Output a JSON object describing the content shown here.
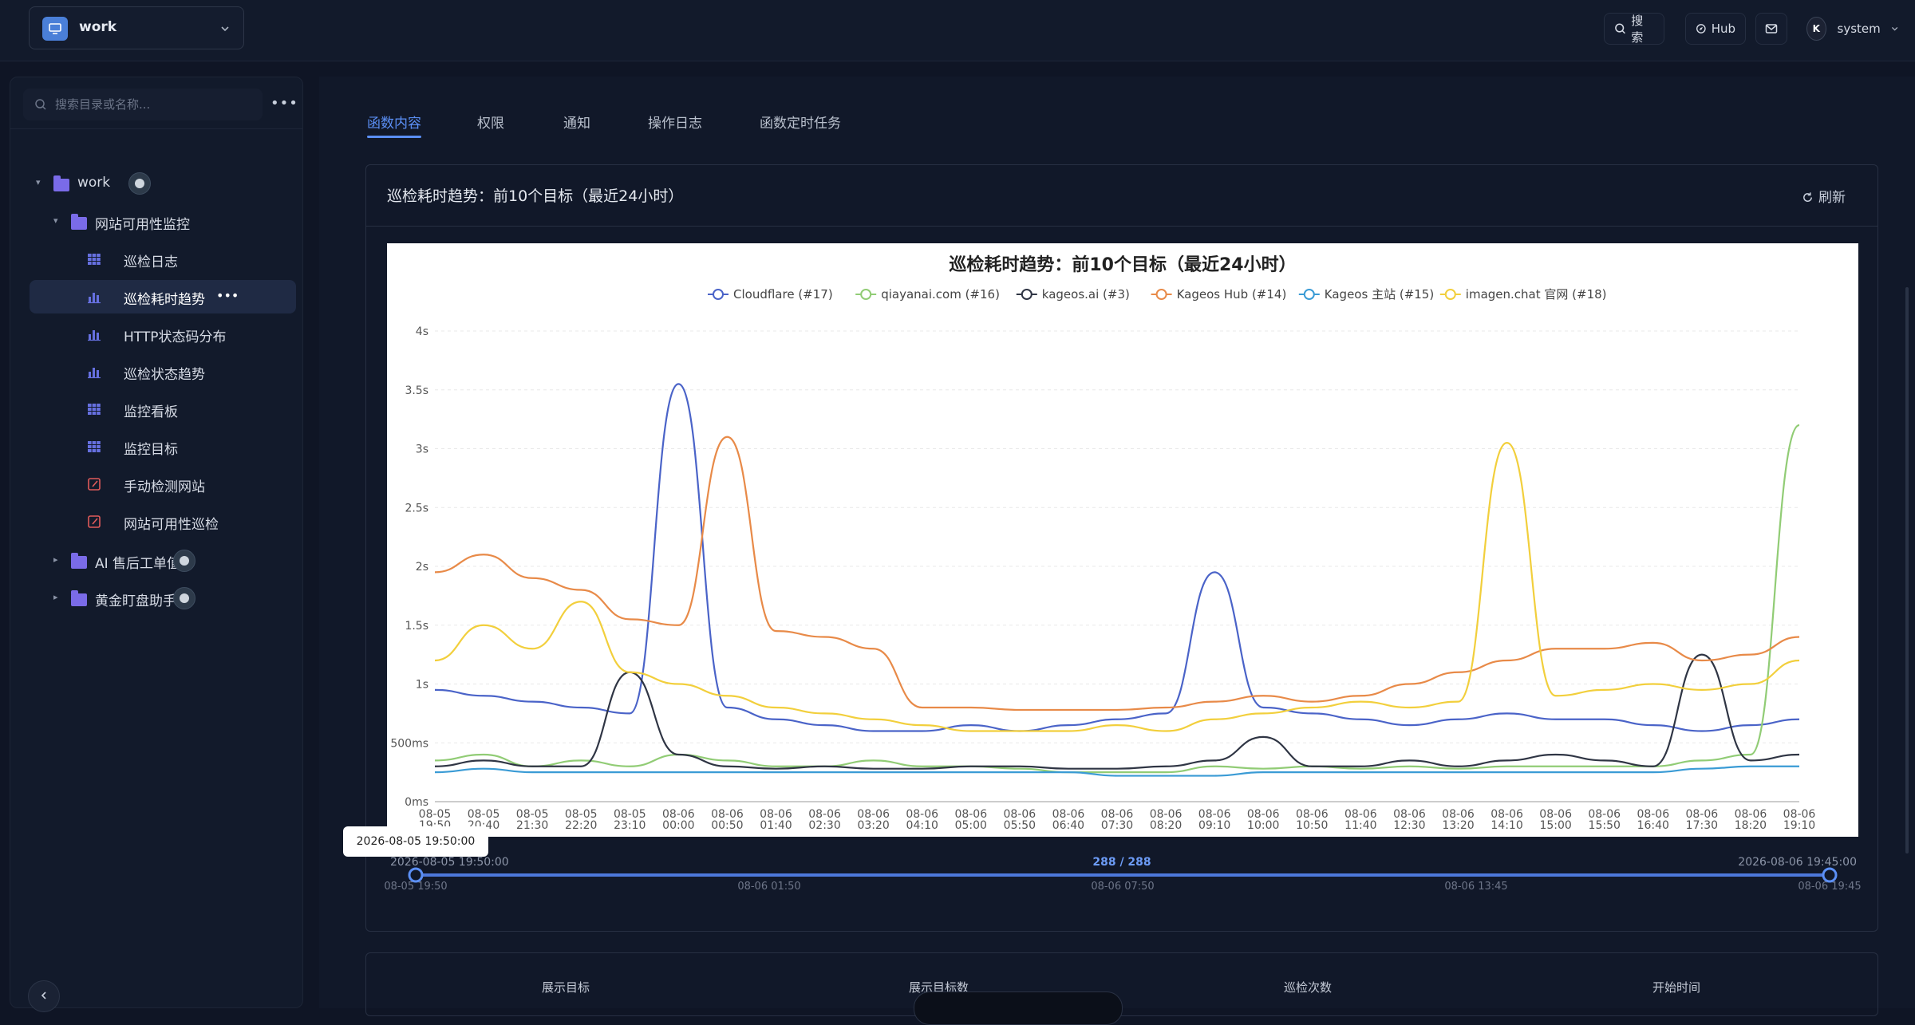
{
  "workspace": {
    "name": "work"
  },
  "topbar": {
    "search_label": "搜索",
    "hub_label": "Hub",
    "user_name": "system",
    "user_initial": "K"
  },
  "sidebar": {
    "search_placeholder": "搜索目录或名称...",
    "tree": [
      {
        "label": "work",
        "type": "folder",
        "level": 0,
        "expanded": true,
        "has_badge": true
      },
      {
        "label": "网站可用性监控",
        "type": "folder",
        "level": 1,
        "expanded": true,
        "has_badge": false
      },
      {
        "label": "巡检日志",
        "type": "table",
        "level": 2,
        "has_badge": false
      },
      {
        "label": "巡检耗时趋势",
        "type": "chart",
        "level": 2,
        "active": true,
        "has_badge": false
      },
      {
        "label": "HTTP状态码分布",
        "type": "chart",
        "level": 2,
        "has_badge": false
      },
      {
        "label": "巡检状态趋势",
        "type": "chart",
        "level": 2,
        "has_badge": false
      },
      {
        "label": "监控看板",
        "type": "table",
        "level": 2,
        "has_badge": false
      },
      {
        "label": "监控目标",
        "type": "table",
        "level": 2,
        "has_badge": false
      },
      {
        "label": "手动检测网站",
        "type": "function",
        "level": 2,
        "has_badge": false
      },
      {
        "label": "网站可用性巡检",
        "type": "function",
        "level": 2,
        "has_badge": false
      },
      {
        "label": "AI 售后工单值守",
        "type": "folder",
        "level": 1,
        "expanded": false,
        "has_badge": true
      },
      {
        "label": "黄金盯盘助手",
        "type": "folder",
        "level": 1,
        "expanded": false,
        "has_badge": true
      }
    ]
  },
  "tabs": [
    {
      "label": "函数内容",
      "active": true
    },
    {
      "label": "权限",
      "active": false
    },
    {
      "label": "通知",
      "active": false
    },
    {
      "label": "操作日志",
      "active": false
    },
    {
      "label": "函数定时任务",
      "active": false
    }
  ],
  "card": {
    "title": "巡检耗时趋势：前10个目标（最近24小时）",
    "refresh_label": "刷新"
  },
  "slider": {
    "tooltip": "2026-08-05 19:50:00",
    "start_label": "2026-08-05 19:50:00",
    "count_label": "288 / 288",
    "end_label": "2026-08-06 19:45:00",
    "ticks": [
      "08-05 19:50",
      "08-06 01:50",
      "08-06 07:50",
      "08-06 13:45",
      "08-06 19:45"
    ]
  },
  "summary_columns": [
    "展示目标",
    "展示目标数",
    "巡检次数",
    "开始时间"
  ],
  "colors": {
    "accent": "#5b8ff5",
    "bg": "#0f1525",
    "panel": "#121a2b"
  },
  "chart_data": {
    "type": "line",
    "title": "巡检耗时趋势：前10个目标（最近24小时）",
    "ylim": [
      0,
      4
    ],
    "y_ticks": [
      "0ms",
      "500ms",
      "1s",
      "1.5s",
      "2s",
      "2.5s",
      "3s",
      "3.5s",
      "4s"
    ],
    "x": [
      "08-05 19:50",
      "08-05 20:40",
      "08-05 21:30",
      "08-05 22:20",
      "08-05 23:10",
      "08-06 00:00",
      "08-06 00:50",
      "08-06 01:40",
      "08-06 02:30",
      "08-06 03:20",
      "08-06 04:10",
      "08-06 05:00",
      "08-06 05:50",
      "08-06 06:40",
      "08-06 07:30",
      "08-06 08:20",
      "08-06 09:10",
      "08-06 10:00",
      "08-06 10:50",
      "08-06 11:40",
      "08-06 12:30",
      "08-06 13:20",
      "08-06 14:10",
      "08-06 15:00",
      "08-06 15:50",
      "08-06 16:40",
      "08-06 17:30",
      "08-06 18:20",
      "08-06 19:10"
    ],
    "legend_position": "top",
    "grid": true,
    "series": [
      {
        "name": "Cloudflare (#17)",
        "color": "#4a63c8",
        "values": [
          0.95,
          0.9,
          0.85,
          0.8,
          0.75,
          3.55,
          0.8,
          0.7,
          0.65,
          0.6,
          0.6,
          0.65,
          0.6,
          0.65,
          0.7,
          0.75,
          1.95,
          0.8,
          0.75,
          0.7,
          0.65,
          0.7,
          0.75,
          0.7,
          0.7,
          0.65,
          0.6,
          0.65,
          0.7
        ]
      },
      {
        "name": "qiayanai.com (#16)",
        "color": "#91cc75",
        "values": [
          0.35,
          0.4,
          0.3,
          0.35,
          0.3,
          0.4,
          0.35,
          0.3,
          0.3,
          0.35,
          0.3,
          0.3,
          0.28,
          0.25,
          0.25,
          0.25,
          0.3,
          0.28,
          0.3,
          0.28,
          0.3,
          0.28,
          0.3,
          0.3,
          0.3,
          0.3,
          0.35,
          0.4,
          3.2
        ]
      },
      {
        "name": "kageos.ai (#3)",
        "color": "#2f3544",
        "values": [
          0.3,
          0.35,
          0.3,
          0.3,
          1.1,
          0.4,
          0.3,
          0.28,
          0.3,
          0.28,
          0.28,
          0.3,
          0.3,
          0.28,
          0.28,
          0.3,
          0.35,
          0.55,
          0.3,
          0.3,
          0.35,
          0.3,
          0.35,
          0.4,
          0.35,
          0.3,
          1.25,
          0.35,
          0.4
        ]
      },
      {
        "name": "Kageos Hub (#14)",
        "color": "#e88a48",
        "values": [
          1.95,
          2.1,
          1.9,
          1.8,
          1.55,
          1.5,
          3.1,
          1.45,
          1.4,
          1.3,
          0.8,
          0.8,
          0.78,
          0.78,
          0.78,
          0.8,
          0.85,
          0.9,
          0.85,
          0.9,
          1.0,
          1.1,
          1.2,
          1.3,
          1.3,
          1.35,
          1.2,
          1.25,
          1.4
        ]
      },
      {
        "name": "Kageos 主站 (#15)",
        "color": "#3a9bd5",
        "values": [
          0.25,
          0.28,
          0.25,
          0.25,
          0.25,
          0.25,
          0.25,
          0.25,
          0.25,
          0.25,
          0.25,
          0.25,
          0.25,
          0.25,
          0.22,
          0.22,
          0.22,
          0.25,
          0.25,
          0.25,
          0.25,
          0.25,
          0.25,
          0.25,
          0.25,
          0.25,
          0.28,
          0.3,
          0.3
        ]
      },
      {
        "name": "imagen.chat 官网 (#18)",
        "color": "#f2cf3c",
        "values": [
          1.2,
          1.5,
          1.3,
          1.7,
          1.1,
          1.0,
          0.9,
          0.8,
          0.75,
          0.7,
          0.65,
          0.6,
          0.6,
          0.6,
          0.65,
          0.6,
          0.7,
          0.75,
          0.8,
          0.85,
          0.8,
          0.85,
          3.05,
          0.9,
          0.95,
          1.0,
          0.95,
          1.0,
          1.2
        ]
      }
    ]
  }
}
